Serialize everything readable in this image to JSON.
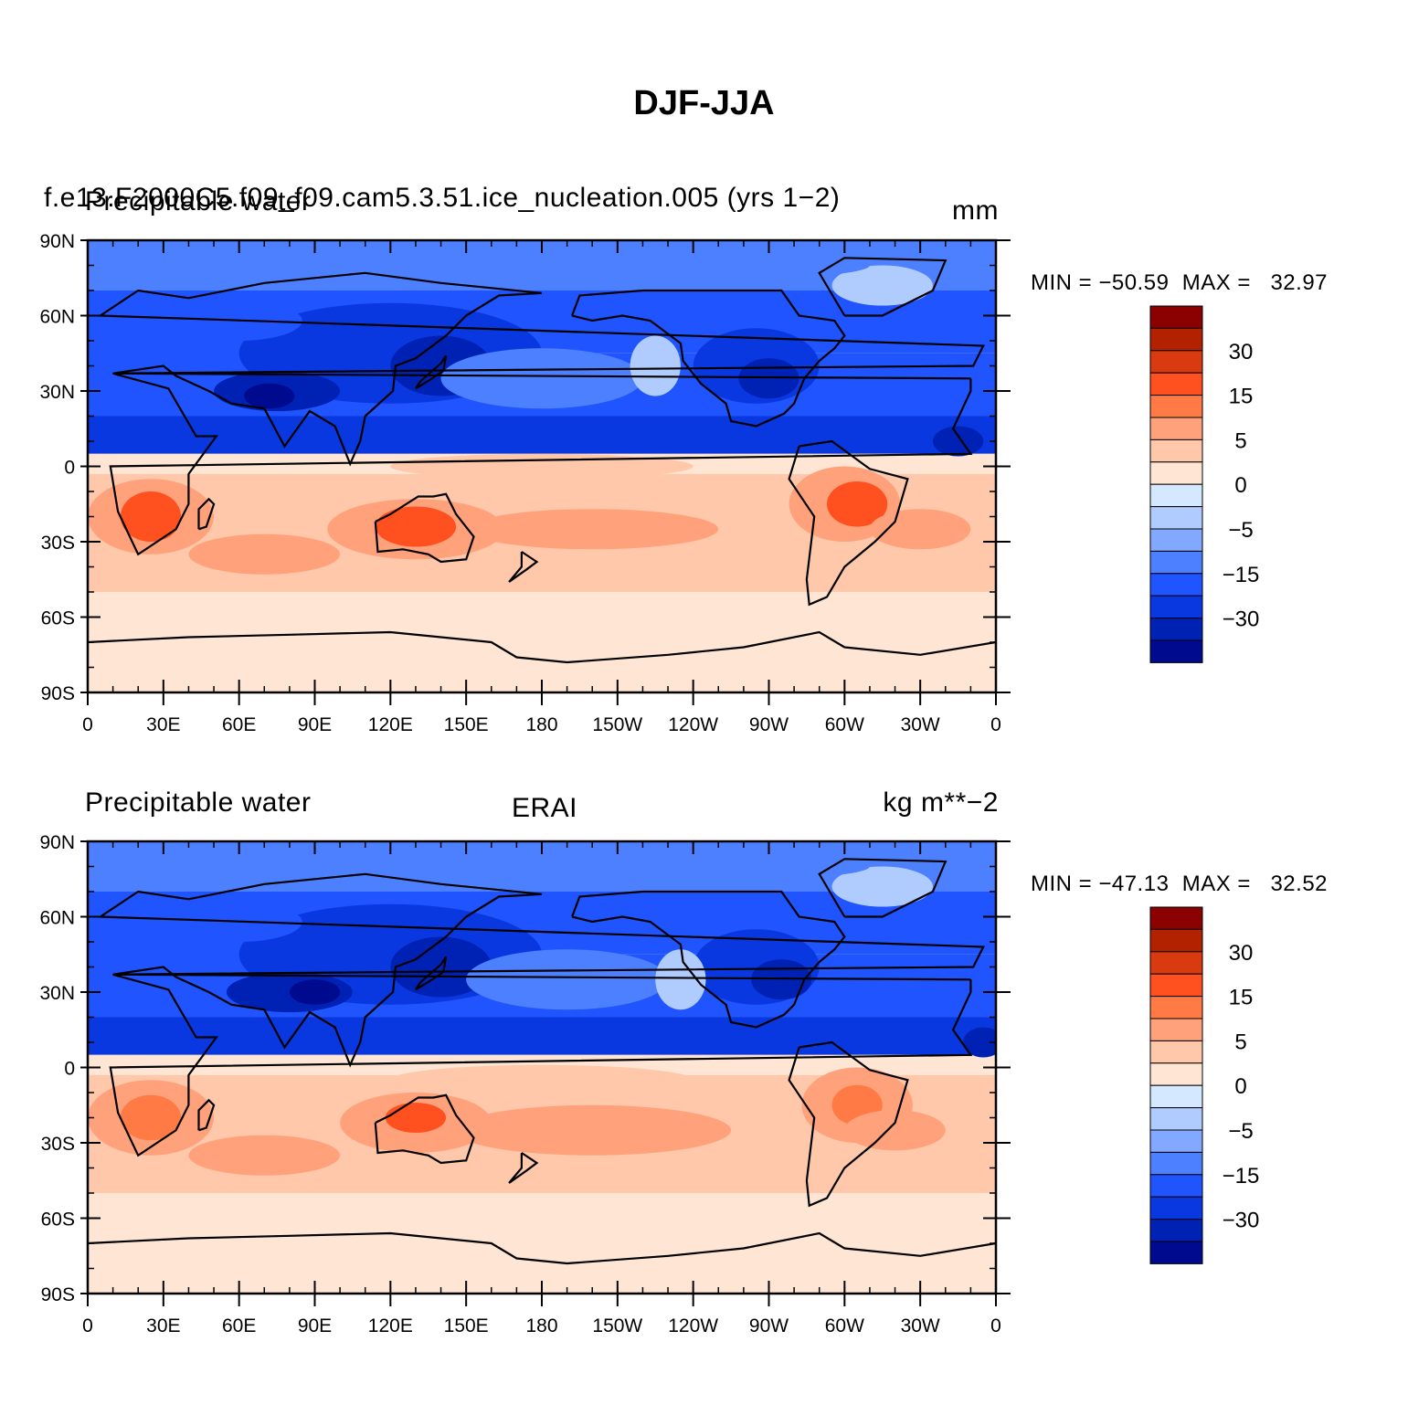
{
  "title": "DJF-JJA",
  "panels": [
    {
      "left_title": "Precipitable water",
      "case_title": "f.e13.F2000C5.f09_f09.cam5.3.51.ice_nucleation.005 (yrs  1−2)",
      "center_title": "",
      "units": "mm",
      "minmax": "MIN = −50.59  MAX =   32.97"
    },
    {
      "left_title": "Precipitable water",
      "case_title": "",
      "center_title": "ERAI",
      "units": "kg m**−2",
      "minmax": "MIN = −47.13  MAX =   32.52"
    }
  ],
  "axes": {
    "lat_labels": [
      "90N",
      "60N",
      "30N",
      "0",
      "30S",
      "60S",
      "90S"
    ],
    "lon_labels": [
      "0",
      "30E",
      "60E",
      "90E",
      "120E",
      "150E",
      "180",
      "150W",
      "120W",
      "90W",
      "60W",
      "30W",
      "0"
    ]
  },
  "colorbar": {
    "labels": [
      "30",
      "15",
      "5",
      "0",
      "−5",
      "−15",
      "−30"
    ],
    "colors": [
      "#8b0000",
      "#b22200",
      "#d93a10",
      "#ff5020",
      "#ff7a45",
      "#ffa27c",
      "#ffc8aa",
      "#ffe6d4",
      "#d4e8ff",
      "#b0ccff",
      "#83a8ff",
      "#4d80ff",
      "#1f54ff",
      "#0a38e0",
      "#0022b4",
      "#000a8e"
    ]
  },
  "colors": {
    "coast": "#000000"
  }
}
